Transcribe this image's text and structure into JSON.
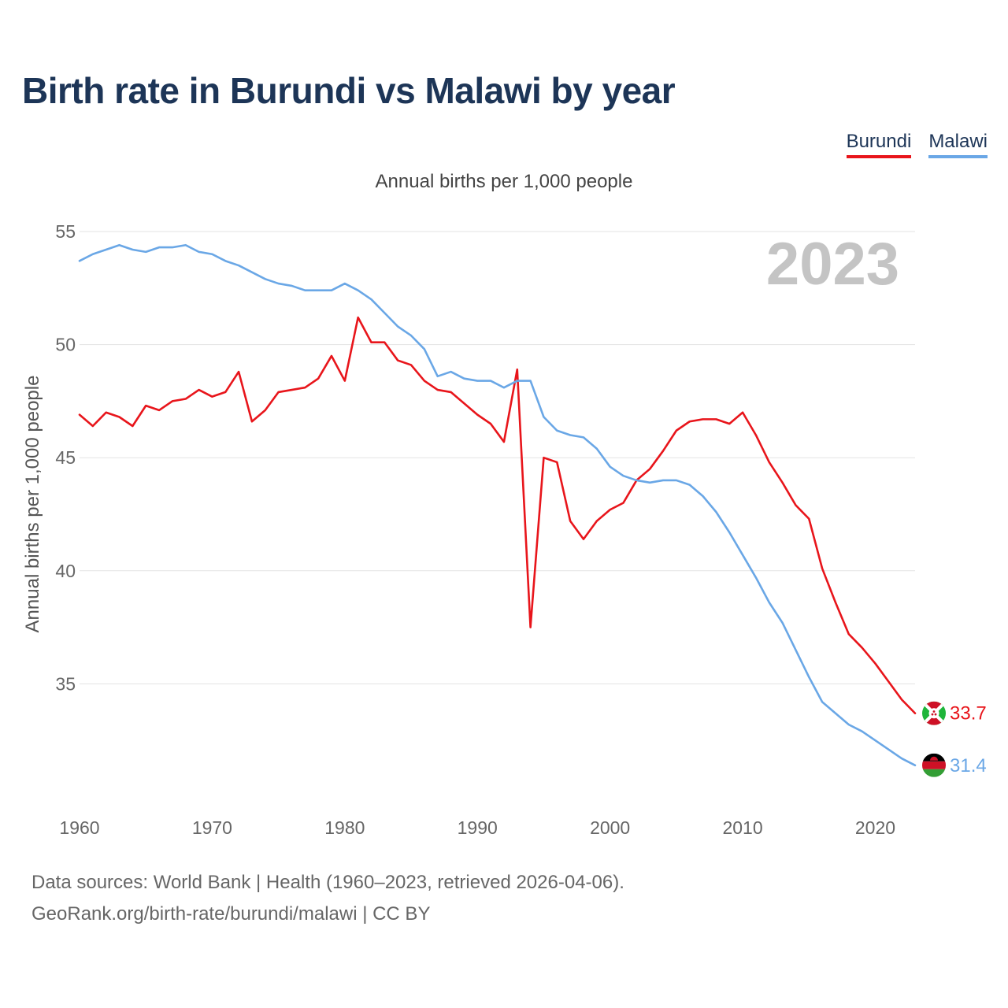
{
  "chart_data": {
    "type": "line",
    "title": "Birth rate in Burundi vs Malawi by year",
    "subtitle": "Annual births per 1,000 people",
    "ylabel": "Annual births per 1,000 people",
    "xlabel": "",
    "highlight_year": "2023",
    "x": [
      1960,
      1961,
      1962,
      1963,
      1964,
      1965,
      1966,
      1967,
      1968,
      1969,
      1970,
      1971,
      1972,
      1973,
      1974,
      1975,
      1976,
      1977,
      1978,
      1979,
      1980,
      1981,
      1982,
      1983,
      1984,
      1985,
      1986,
      1987,
      1988,
      1989,
      1990,
      1991,
      1992,
      1993,
      1994,
      1995,
      1996,
      1997,
      1998,
      1999,
      2000,
      2001,
      2002,
      2003,
      2004,
      2005,
      2006,
      2007,
      2008,
      2009,
      2010,
      2011,
      2012,
      2013,
      2014,
      2015,
      2016,
      2017,
      2018,
      2019,
      2020,
      2021,
      2022,
      2023
    ],
    "xlim": [
      1960,
      2023
    ],
    "ylim": [
      30,
      55
    ],
    "x_ticks": [
      "1960",
      "1970",
      "1980",
      "1990",
      "2000",
      "2010",
      "2020"
    ],
    "y_ticks": [
      "35",
      "40",
      "45",
      "50",
      "55"
    ],
    "grid": true,
    "legend_position": "top-right",
    "series": [
      {
        "name": "Burundi",
        "color": "#e8151b",
        "end_label": "33.7",
        "flag": "burundi-flag",
        "values": [
          46.9,
          46.4,
          47.0,
          46.8,
          46.4,
          47.3,
          47.1,
          47.5,
          47.6,
          48.0,
          47.7,
          47.9,
          48.8,
          46.6,
          47.1,
          47.9,
          48.0,
          48.1,
          48.5,
          49.5,
          48.4,
          51.2,
          50.1,
          50.1,
          49.3,
          49.1,
          48.4,
          48.0,
          47.9,
          47.4,
          46.9,
          46.5,
          45.7,
          48.9,
          37.5,
          45.0,
          44.8,
          42.2,
          41.4,
          42.2,
          42.7,
          43.0,
          44.0,
          44.5,
          45.3,
          46.2,
          46.6,
          46.7,
          46.7,
          46.5,
          47.0,
          46.0,
          44.8,
          43.9,
          42.9,
          42.3,
          40.1,
          38.6,
          37.2,
          36.6,
          35.9,
          35.1,
          34.3,
          33.7
        ]
      },
      {
        "name": "Malawi",
        "color": "#6aa7e6",
        "end_label": "31.4",
        "flag": "malawi-flag",
        "values": [
          53.7,
          54.0,
          54.2,
          54.4,
          54.2,
          54.1,
          54.3,
          54.3,
          54.4,
          54.1,
          54.0,
          53.7,
          53.5,
          53.2,
          52.9,
          52.7,
          52.6,
          52.4,
          52.4,
          52.4,
          52.7,
          52.4,
          52.0,
          51.4,
          50.8,
          50.4,
          49.8,
          48.6,
          48.8,
          48.5,
          48.4,
          48.4,
          48.1,
          48.4,
          48.4,
          46.8,
          46.2,
          46.0,
          45.9,
          45.4,
          44.6,
          44.2,
          44.0,
          43.9,
          44.0,
          44.0,
          43.8,
          43.3,
          42.6,
          41.7,
          40.7,
          39.7,
          38.6,
          37.7,
          36.5,
          35.3,
          34.2,
          33.7,
          33.2,
          32.9,
          32.5,
          32.1,
          31.7,
          31.4
        ]
      }
    ]
  },
  "legend": {
    "items": [
      "Burundi",
      "Malawi"
    ]
  },
  "footer": {
    "line1": "Data sources: World Bank | Health (1960–2023, retrieved 2026-04-06).",
    "line2": "GeoRank.org/birth-rate/burundi/malawi | CC BY"
  }
}
